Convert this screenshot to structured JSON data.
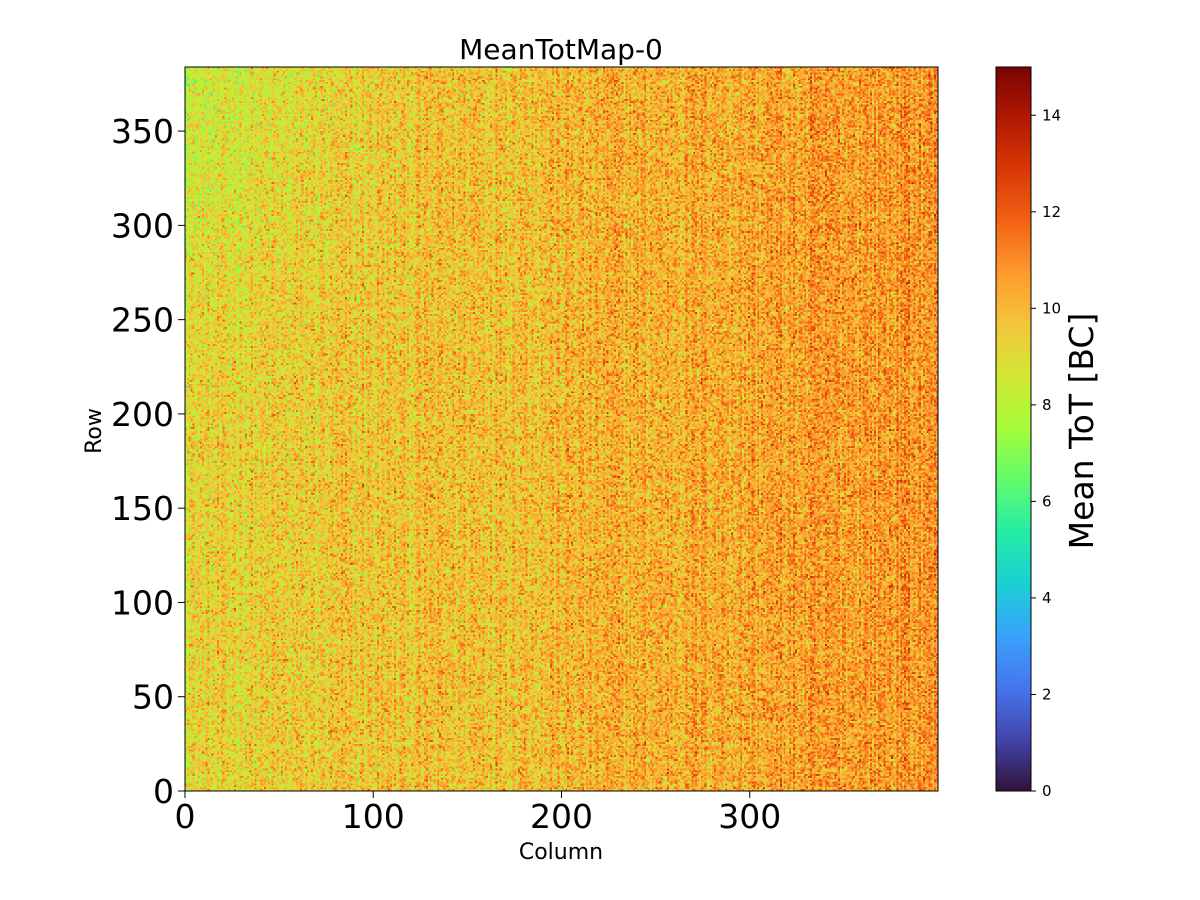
{
  "chart_data": {
    "type": "heatmap",
    "title": "MeanTotMap-0",
    "xlabel": "Column",
    "ylabel": "Row",
    "xlim": [
      0,
      400
    ],
    "ylim": [
      0,
      384
    ],
    "x_ticks": [
      0,
      100,
      200,
      300
    ],
    "y_ticks": [
      0,
      50,
      100,
      150,
      200,
      250,
      300,
      350
    ],
    "colormap": "turbo",
    "colorbar": {
      "label": "Mean ToT [BC]",
      "range": [
        0,
        15
      ],
      "ticks": [
        0,
        2,
        4,
        6,
        8,
        10,
        12,
        14
      ]
    },
    "value_distribution": {
      "typical_range": [
        7,
        14
      ],
      "dominant_level": 10,
      "lower_values_region": "top-left corner (greener, ~7-9)",
      "higher_values_region": "right side (redder, ~11-14)"
    }
  }
}
